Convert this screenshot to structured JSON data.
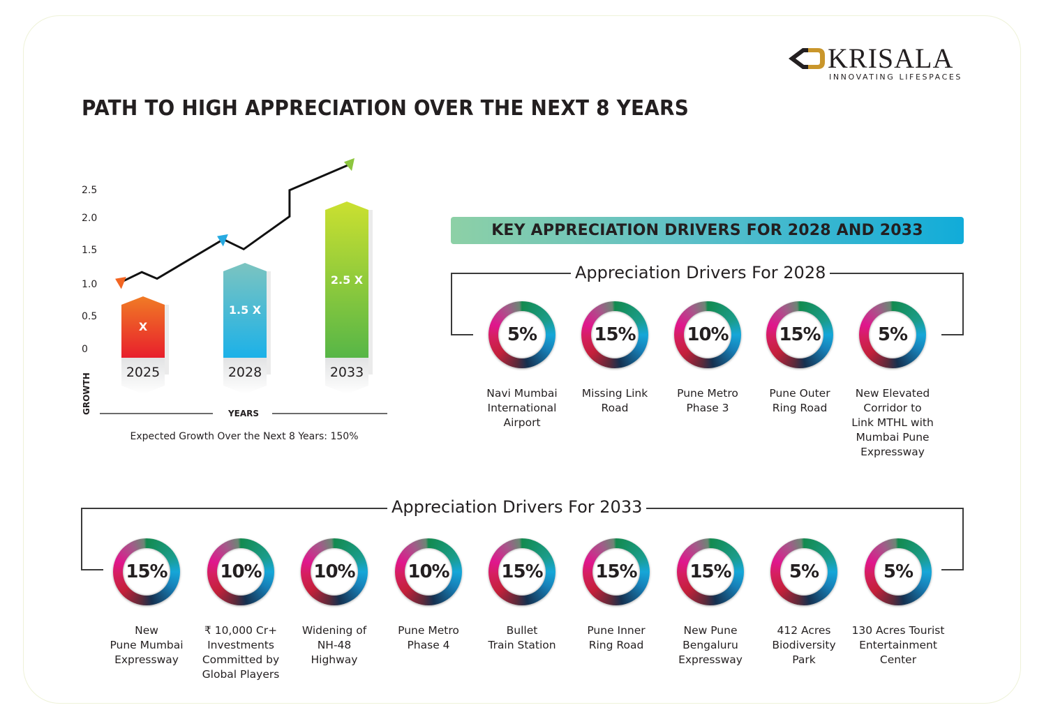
{
  "brand": {
    "name": "KRISALA",
    "tagline": "INNOVATING LIFESPACES",
    "colors": {
      "logo_gold": "#c9962b",
      "logo_dark": "#231f20"
    }
  },
  "page_title": "PATH TO HIGH APPRECIATION OVER THE NEXT 8 YEARS",
  "chart_data": {
    "type": "bar",
    "title": "",
    "xlabel": "YEARS",
    "ylabel": "GROWTH",
    "ylim": [
      0,
      2.5
    ],
    "y_ticks": [
      "0",
      "0.5",
      "1.0",
      "1.5",
      "2.0",
      "2.5"
    ],
    "categories": [
      "2025",
      "2028",
      "2033"
    ],
    "values": [
      1.0,
      1.5,
      2.5
    ],
    "bar_labels": [
      "X",
      "1.5 X",
      "2.5 X"
    ],
    "bar_colors": [
      [
        "#f07b25",
        "#e81f2c"
      ],
      [
        "#7cc4c0",
        "#1cb1e8"
      ],
      [
        "#cbe030",
        "#57b647"
      ]
    ],
    "trend_line": {
      "description": "Upward zig-zag trend arrow above bars",
      "points": [
        [
          0.0,
          1.05
        ],
        [
          0.2,
          1.2
        ],
        [
          0.35,
          1.1
        ],
        [
          1.0,
          1.7
        ],
        [
          1.2,
          1.55
        ],
        [
          1.65,
          2.05
        ],
        [
          1.65,
          2.45
        ],
        [
          2.25,
          2.85
        ]
      ],
      "marker_colors": [
        "#f26522",
        "#27aae1",
        "#8dc63f"
      ]
    },
    "grid": false,
    "legend": "none"
  },
  "growth_note": "Expected Growth Over the Next 8 Years: 150%",
  "key_banner": "KEY APPRECIATION DRIVERS FOR 2028 AND 2033",
  "drivers_2028": {
    "title": "Appreciation Drivers For 2028",
    "items": [
      {
        "value": "5%",
        "name": "Navi Mumbai\nInternational\nAirport"
      },
      {
        "value": "15%",
        "name": "Missing Link\nRoad"
      },
      {
        "value": "10%",
        "name": "Pune Metro\nPhase 3"
      },
      {
        "value": "15%",
        "name": "Pune Outer\nRing Road"
      },
      {
        "value": "5%",
        "name": "New Elevated\nCorridor to\nLink MTHL with\nMumbai Pune\nExpressway"
      }
    ]
  },
  "drivers_2033": {
    "title": "Appreciation Drivers For 2033",
    "items": [
      {
        "value": "15%",
        "name": "New\nPune Mumbai\nExpressway"
      },
      {
        "value": "10%",
        "name": "₹ 10,000 Cr+\nInvestments\nCommitted by\nGlobal Players"
      },
      {
        "value": "10%",
        "name": "Widening of\nNH-48\nHighway"
      },
      {
        "value": "10%",
        "name": "Pune Metro\nPhase 4"
      },
      {
        "value": "15%",
        "name": "Bullet\nTrain Station"
      },
      {
        "value": "15%",
        "name": "Pune Inner\nRing Road"
      },
      {
        "value": "15%",
        "name": "New Pune\nBengaluru\nExpressway"
      },
      {
        "value": "5%",
        "name": "412 Acres\nBiodiversity\nPark"
      },
      {
        "value": "5%",
        "name": "130 Acres Tourist\nEntertainment\nCenter"
      }
    ]
  }
}
